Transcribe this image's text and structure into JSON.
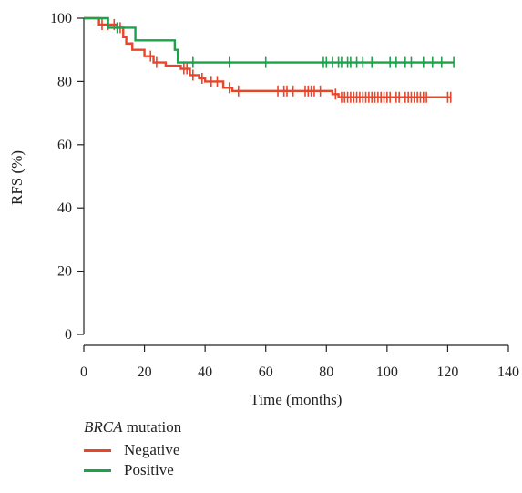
{
  "chart_data": {
    "type": "line",
    "subtype": "kaplan-meier-step",
    "xlabel": "Time (months)",
    "ylabel": "RFS (%)",
    "xlim": [
      0,
      140
    ],
    "ylim": [
      0,
      100
    ],
    "xticks": [
      0,
      20,
      40,
      60,
      80,
      100,
      120,
      140
    ],
    "yticks": [
      0,
      20,
      40,
      60,
      80,
      100
    ],
    "grid": false,
    "legend_position": "bottom-left",
    "legend_title_italic": "BRCA",
    "legend_title_rest": " mutation",
    "series": [
      {
        "name": "Negative",
        "color": "#e8452a",
        "steps": [
          [
            0,
            100
          ],
          [
            5,
            98
          ],
          [
            11,
            97
          ],
          [
            13,
            94
          ],
          [
            14,
            92
          ],
          [
            16,
            90
          ],
          [
            20,
            88
          ],
          [
            23,
            86
          ],
          [
            27,
            85
          ],
          [
            32,
            84
          ],
          [
            35,
            82
          ],
          [
            38,
            81
          ],
          [
            40,
            80
          ],
          [
            46,
            78
          ],
          [
            49,
            77
          ],
          [
            82,
            76
          ],
          [
            84,
            75
          ],
          [
            121,
            75
          ]
        ],
        "censor_x": [
          6,
          8,
          10,
          12,
          22,
          24,
          33,
          34,
          36,
          39,
          42,
          44,
          48,
          51,
          64,
          66,
          67,
          69,
          73,
          74,
          75,
          76,
          78,
          83,
          85,
          86,
          87,
          88,
          89,
          90,
          91,
          92,
          93,
          94,
          95,
          96,
          97,
          98,
          99,
          100,
          101,
          103,
          104,
          106,
          107,
          108,
          109,
          110,
          111,
          112,
          113,
          120,
          121
        ]
      },
      {
        "name": "Positive",
        "color": "#1aa34a",
        "steps": [
          [
            0,
            100
          ],
          [
            8,
            97
          ],
          [
            17,
            93
          ],
          [
            30,
            90
          ],
          [
            31,
            86
          ],
          [
            122,
            86
          ]
        ],
        "censor_x": [
          11,
          36,
          48,
          60,
          79,
          80,
          82,
          84,
          85,
          87,
          88,
          90,
          92,
          95,
          101,
          103,
          106,
          108,
          112,
          115,
          118,
          122
        ]
      }
    ]
  }
}
